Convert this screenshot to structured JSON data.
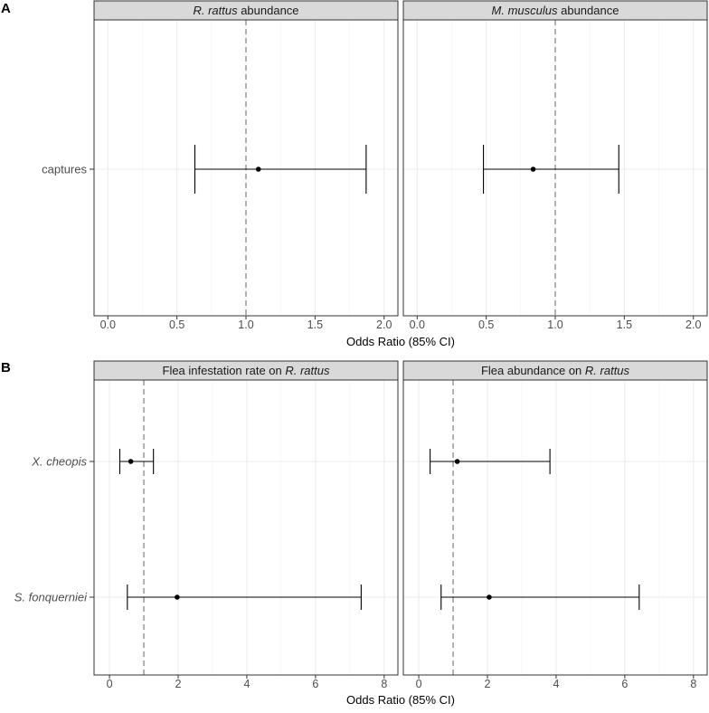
{
  "chart_data": [
    {
      "type": "forest",
      "tag": "A",
      "xlabel": "Odds Ratio (85% CI)",
      "xlim": [
        -0.1,
        2.1
      ],
      "xticks": [
        "0.0",
        "0.5",
        "1.0",
        "1.5",
        "2.0"
      ],
      "reference_line": 1.0,
      "rows": [
        "captures"
      ],
      "rows_italic": false,
      "panels": [
        {
          "title": [
            {
              "text": "R. rattus",
              "italic": true
            },
            {
              "text": " abundance",
              "italic": false
            }
          ],
          "estimates": [
            {
              "row": "captures",
              "or": 1.09,
              "lower": 0.63,
              "upper": 1.87
            }
          ]
        },
        {
          "title": [
            {
              "text": "M. musculus",
              "italic": true
            },
            {
              "text": " abundance",
              "italic": false
            }
          ],
          "estimates": [
            {
              "row": "captures",
              "or": 0.84,
              "lower": 0.48,
              "upper": 1.46
            }
          ]
        }
      ]
    },
    {
      "type": "forest",
      "tag": "B",
      "xlabel": "Odds Ratio (85% CI)",
      "xlim": [
        -0.45,
        8.4
      ],
      "xticks": [
        "0",
        "2",
        "4",
        "6",
        "8"
      ],
      "reference_line": 1.0,
      "rows": [
        "X. cheopis",
        "S. fonquerniei"
      ],
      "rows_italic": true,
      "panels": [
        {
          "title": [
            {
              "text": "Flea infestation rate on ",
              "italic": false
            },
            {
              "text": "R. rattus",
              "italic": true
            }
          ],
          "estimates": [
            {
              "row": "X. cheopis",
              "or": 0.62,
              "lower": 0.3,
              "upper": 1.28
            },
            {
              "row": "S. fonquerniei",
              "or": 1.97,
              "lower": 0.52,
              "upper": 7.33
            }
          ]
        },
        {
          "title": [
            {
              "text": "Flea abundance on ",
              "italic": false
            },
            {
              "text": "R. rattus",
              "italic": true
            }
          ],
          "estimates": [
            {
              "row": "X. cheopis",
              "or": 1.12,
              "lower": 0.33,
              "upper": 3.82
            },
            {
              "row": "S. fonquerniei",
              "or": 2.05,
              "lower": 0.65,
              "upper": 6.42
            }
          ]
        }
      ]
    }
  ]
}
